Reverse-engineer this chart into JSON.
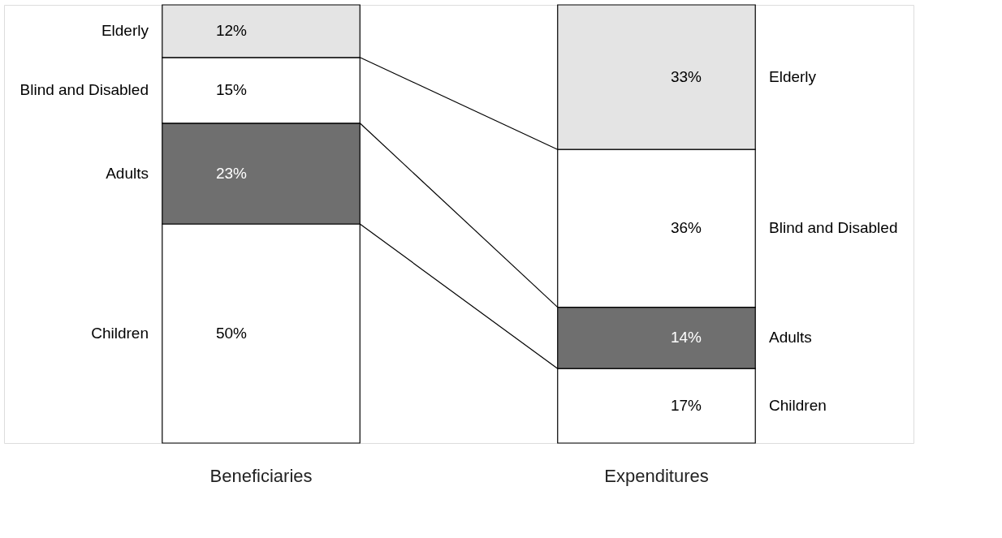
{
  "chart_data": {
    "type": "bar",
    "stacked": true,
    "legend": false,
    "tick_labels": "x",
    "categories": [
      "Beneficiaries",
      "Expenditures"
    ],
    "series": [
      {
        "name": "Children",
        "color": "#ffffff",
        "values": [
          50,
          17
        ],
        "value_labels": [
          "50%",
          "17%"
        ]
      },
      {
        "name": "Adults",
        "color": "#6f6f6f",
        "values": [
          23,
          14
        ],
        "value_labels": [
          "23%",
          "14%"
        ]
      },
      {
        "name": "Blind and Disabled",
        "color": "#ffffff",
        "values": [
          15,
          36
        ],
        "value_labels": [
          "15%",
          "36%"
        ]
      },
      {
        "name": "Elderly",
        "color": "#e4e4e4",
        "values": [
          12,
          33
        ],
        "value_labels": [
          "12%",
          "33%"
        ]
      }
    ]
  }
}
